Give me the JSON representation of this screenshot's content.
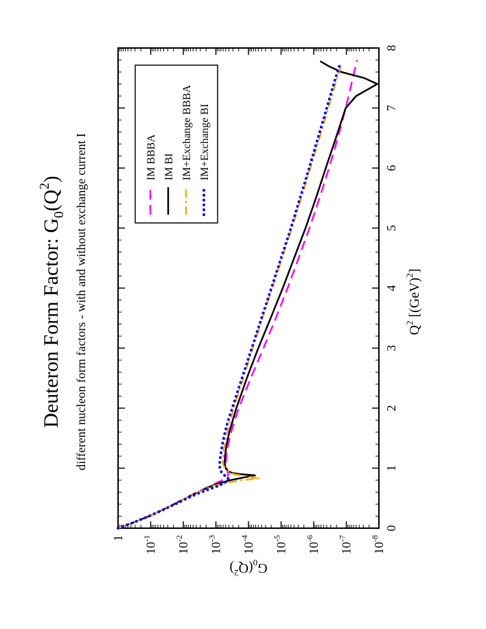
{
  "chart_data": {
    "type": "line",
    "orientation": "rotated-90-clockwise",
    "title": "Deuteron Form Factor: G",
    "title_sub": "0",
    "title_arg": "(Q",
    "title_sup": "2",
    "title_end": ")",
    "subtitle": "different nucleon form factors - with and without exchange current I",
    "xlabel": {
      "base": "Q",
      "sup": "2",
      "mid": " [(GeV)",
      "sup2": "2",
      "end": "]"
    },
    "ylabel": {
      "base": "G",
      "sub": "0",
      "mid": "(Q",
      "sup": "2",
      "end": ")"
    },
    "xlim": [
      0,
      8
    ],
    "ylim_log10": [
      -8,
      0
    ],
    "xticks": [
      "0",
      "1",
      "2",
      "3",
      "4",
      "5",
      "6",
      "7",
      "8"
    ],
    "yticks": [
      {
        "base": "1",
        "exp": ""
      },
      {
        "base": "10",
        "exp": "-1"
      },
      {
        "base": "10",
        "exp": "-2"
      },
      {
        "base": "10",
        "exp": "-3"
      },
      {
        "base": "10",
        "exp": "-4"
      },
      {
        "base": "10",
        "exp": "-5"
      },
      {
        "base": "10",
        "exp": "-6"
      },
      {
        "base": "10",
        "exp": "-7"
      },
      {
        "base": "10",
        "exp": "-8"
      }
    ],
    "legend_position": "top-right",
    "series": [
      {
        "name": "IM BBBA",
        "color": "#ff00ff",
        "style": "dashed",
        "x": [
          0,
          0.1,
          0.2,
          0.3,
          0.4,
          0.5,
          0.6,
          0.7,
          0.8,
          0.85,
          0.9,
          0.95,
          1.0,
          1.05,
          1.1,
          1.2,
          1.4,
          1.6,
          1.8,
          2.0,
          2.5,
          3.0,
          3.5,
          4.0,
          4.5,
          5.0,
          5.5,
          6.0,
          6.5,
          7.0,
          7.5,
          7.8
        ],
        "log10_values": [
          0,
          -0.5,
          -0.95,
          -1.35,
          -1.72,
          -2.07,
          -2.42,
          -2.82,
          -3.2,
          -3.36,
          -3.38,
          -3.35,
          -3.33,
          -3.32,
          -3.31,
          -3.32,
          -3.38,
          -3.47,
          -3.58,
          -3.7,
          -4.07,
          -4.46,
          -4.84,
          -5.2,
          -5.54,
          -5.87,
          -6.18,
          -6.47,
          -6.74,
          -6.98,
          -7.2,
          -7.33
        ]
      },
      {
        "name": "IM BI",
        "color": "#000000",
        "style": "solid",
        "x": [
          0,
          0.1,
          0.2,
          0.3,
          0.4,
          0.5,
          0.6,
          0.7,
          0.75,
          0.8,
          0.85,
          0.88,
          0.9,
          0.92,
          0.95,
          1.0,
          1.05,
          1.1,
          1.2,
          1.4,
          1.6,
          1.8,
          2.0,
          2.5,
          3.0,
          3.5,
          4.0,
          4.5,
          5.0,
          5.5,
          6.0,
          6.5,
          7.0,
          7.2,
          7.4,
          7.5,
          7.6,
          7.7,
          7.78
        ],
        "log10_values": [
          0,
          -0.5,
          -0.95,
          -1.35,
          -1.72,
          -2.07,
          -2.45,
          -2.85,
          -3.1,
          -3.45,
          -3.9,
          -4.2,
          -3.75,
          -3.5,
          -3.38,
          -3.3,
          -3.28,
          -3.27,
          -3.28,
          -3.33,
          -3.41,
          -3.52,
          -3.63,
          -3.95,
          -4.3,
          -4.68,
          -5.05,
          -5.4,
          -5.75,
          -6.07,
          -6.37,
          -6.68,
          -6.98,
          -7.3,
          -7.95,
          -7.55,
          -6.85,
          -6.45,
          -6.2
        ]
      },
      {
        "name": "IM+Exchange BBBA",
        "color": "#ffa500",
        "style": "dash-dot",
        "x": [
          0,
          0.1,
          0.2,
          0.3,
          0.4,
          0.5,
          0.6,
          0.7,
          0.75,
          0.8,
          0.83,
          0.86,
          0.9,
          0.95,
          1.0,
          1.05,
          1.1,
          1.2,
          1.4,
          1.6,
          1.8,
          2.0,
          2.5,
          3.0,
          3.5,
          4.0,
          4.5,
          5.0,
          5.5,
          6.0,
          6.5,
          7.0,
          7.5,
          7.75
        ],
        "log10_values": [
          0,
          -0.5,
          -0.95,
          -1.35,
          -1.72,
          -2.07,
          -2.45,
          -2.9,
          -3.3,
          -3.8,
          -4.35,
          -3.95,
          -3.55,
          -3.38,
          -3.28,
          -3.23,
          -3.21,
          -3.22,
          -3.27,
          -3.35,
          -3.45,
          -3.55,
          -3.84,
          -4.13,
          -4.43,
          -4.73,
          -5.03,
          -5.33,
          -5.62,
          -5.9,
          -6.18,
          -6.45,
          -6.72,
          -6.87
        ]
      },
      {
        "name": "IM+Exchange BI",
        "color": "#0000ff",
        "style": "dotted",
        "x": [
          0,
          0.1,
          0.2,
          0.3,
          0.4,
          0.5,
          0.6,
          0.65,
          0.7,
          0.75,
          0.8,
          0.82,
          0.85,
          0.9,
          0.95,
          1.0,
          1.1,
          1.2,
          1.4,
          1.6,
          1.8,
          2.0,
          2.5,
          3.0,
          3.5,
          4.0,
          4.5,
          5.0,
          5.5,
          6.0,
          6.5,
          7.0,
          7.5,
          7.72
        ],
        "log10_values": [
          0,
          -0.5,
          -0.95,
          -1.36,
          -1.75,
          -2.13,
          -2.55,
          -2.8,
          -3.05,
          -3.25,
          -3.38,
          -3.38,
          -3.33,
          -3.22,
          -3.15,
          -3.12,
          -3.12,
          -3.14,
          -3.2,
          -3.28,
          -3.38,
          -3.5,
          -3.8,
          -4.1,
          -4.4,
          -4.7,
          -5.0,
          -5.3,
          -5.58,
          -5.86,
          -6.13,
          -6.4,
          -6.67,
          -6.8
        ]
      }
    ]
  }
}
